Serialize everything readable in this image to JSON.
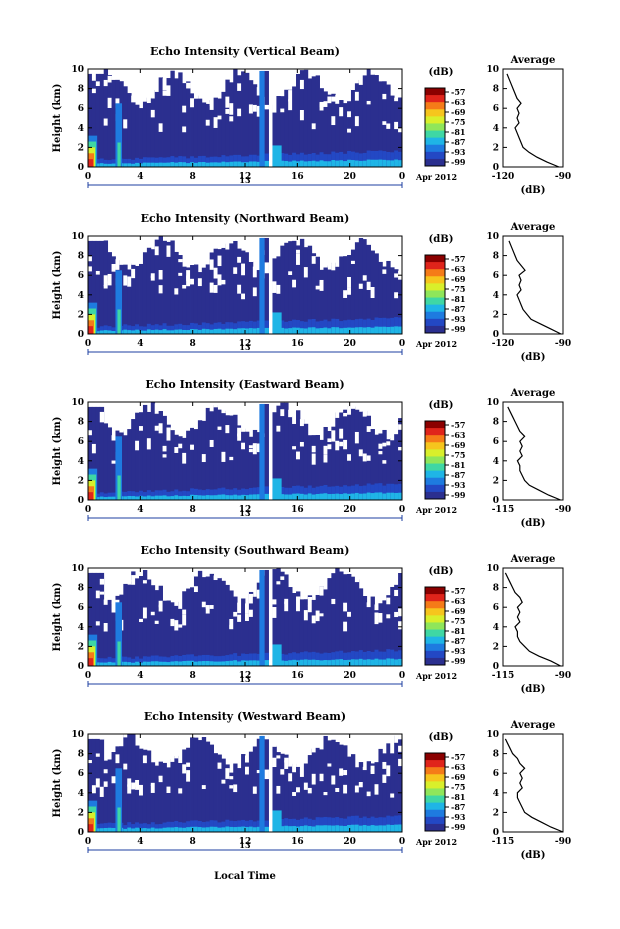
{
  "figure": {
    "xlabel": "Local Time",
    "date_label": "Apr 2012",
    "day_label": "13",
    "colorbar_unit": "(dB)",
    "colorbar_ticks": [
      "-57",
      "-63",
      "-69",
      "-75",
      "-81",
      "-87",
      "-93",
      "-99"
    ],
    "average_title": "Average",
    "average_xlabel": "(dB)"
  },
  "colors": {
    "background_echo": "#2b2f8f",
    "scale": [
      "#8b0000",
      "#e0241b",
      "#f57b18",
      "#f6c51d",
      "#d9ef2b",
      "#8fe65a",
      "#3fd7a4",
      "#1fb5e6",
      "#1e7be0",
      "#2348c4",
      "#2b2f8f"
    ]
  },
  "chart_data": [
    {
      "type": "heatmap",
      "title": "Echo Intensity (Vertical Beam)",
      "ylabel": "Height (km)",
      "xlim": [
        0,
        24
      ],
      "ylim": [
        0,
        10
      ],
      "xticks": [
        "0",
        "4",
        "8",
        "12",
        "16",
        "20",
        "0"
      ],
      "yticks": [
        "0",
        "2",
        "4",
        "6",
        "8",
        "10"
      ],
      "average": {
        "title": "Average",
        "xticks": [
          "-120",
          "-90"
        ],
        "xlim": [
          -120,
          -90
        ],
        "height": [
          0,
          0.5,
          1,
          1.5,
          2,
          2.5,
          3,
          3.5,
          4,
          4.5,
          5,
          5.5,
          6,
          6.5,
          7,
          7.5,
          8,
          8.5,
          9,
          9.5
        ],
        "db": [
          -92,
          -98,
          -103,
          -107,
          -110,
          -111,
          -112,
          -113,
          -114,
          -112,
          -113,
          -112,
          -113,
          -111,
          -113,
          -114,
          -115,
          -116,
          -117,
          -118
        ]
      }
    },
    {
      "type": "heatmap",
      "title": "Echo Intensity (Northward Beam)",
      "ylabel": "Height (km)",
      "xlim": [
        0,
        24
      ],
      "ylim": [
        0,
        10
      ],
      "xticks": [
        "0",
        "4",
        "8",
        "12",
        "16",
        "20",
        "0"
      ],
      "yticks": [
        "0",
        "2",
        "4",
        "6",
        "8",
        "10"
      ],
      "average": {
        "title": "Average",
        "xticks": [
          "-120",
          "-90"
        ],
        "xlim": [
          -120,
          -90
        ],
        "height": [
          0,
          0.5,
          1,
          1.5,
          2,
          2.5,
          3,
          3.5,
          4,
          4.5,
          5,
          5.5,
          6,
          6.5,
          7,
          7.5,
          8,
          8.5,
          9,
          9.5
        ],
        "db": [
          -91,
          -96,
          -101,
          -106,
          -108,
          -110,
          -111,
          -112,
          -113,
          -111,
          -112,
          -111,
          -112,
          -109,
          -111,
          -113,
          -114,
          -115,
          -116,
          -117
        ]
      }
    },
    {
      "type": "heatmap",
      "title": "Echo Intensity (Eastward Beam)",
      "ylabel": "Height (km)",
      "xlim": [
        0,
        24
      ],
      "ylim": [
        0,
        10
      ],
      "xticks": [
        "0",
        "4",
        "8",
        "12",
        "16",
        "20",
        "0"
      ],
      "yticks": [
        "0",
        "2",
        "4",
        "6",
        "8",
        "10"
      ],
      "average": {
        "title": "Average",
        "xticks": [
          "-115",
          "-90"
        ],
        "xlim": [
          -115,
          -90
        ],
        "height": [
          0,
          0.5,
          1,
          1.5,
          2,
          2.5,
          3,
          3.5,
          4,
          4.5,
          5,
          5.5,
          6,
          6.5,
          7,
          7.5,
          8,
          8.5,
          9,
          9.5
        ],
        "db": [
          -91,
          -96,
          -100,
          -104,
          -106,
          -107,
          -108,
          -108,
          -109,
          -107,
          -108,
          -107,
          -108,
          -106,
          -108,
          -109,
          -110,
          -111,
          -112,
          -113
        ]
      }
    },
    {
      "type": "heatmap",
      "title": "Echo Intensity (Southward Beam)",
      "ylabel": "Height (km)",
      "xlim": [
        0,
        24
      ],
      "ylim": [
        0,
        10
      ],
      "xticks": [
        "0",
        "4",
        "8",
        "12",
        "16",
        "20",
        "0"
      ],
      "yticks": [
        "0",
        "2",
        "4",
        "6",
        "8",
        "10"
      ],
      "average": {
        "title": "Average",
        "xticks": [
          "-115",
          "-90"
        ],
        "xlim": [
          -115,
          -90
        ],
        "height": [
          0,
          0.5,
          1,
          1.5,
          2,
          2.5,
          3,
          3.5,
          4,
          4.5,
          5,
          5.5,
          6,
          6.5,
          7,
          7.5,
          8,
          8.5,
          9,
          9.5
        ],
        "db": [
          -91,
          -95,
          -100,
          -104,
          -106,
          -108,
          -109,
          -109,
          -110,
          -108,
          -109,
          -108,
          -109,
          -107,
          -108,
          -110,
          -111,
          -112,
          -113,
          -114
        ]
      }
    },
    {
      "type": "heatmap",
      "title": "Echo Intensity (Westward Beam)",
      "ylabel": "Height (km)",
      "xlim": [
        0,
        24
      ],
      "ylim": [
        0,
        10
      ],
      "xticks": [
        "0",
        "4",
        "8",
        "12",
        "16",
        "20",
        "0"
      ],
      "yticks": [
        "0",
        "2",
        "4",
        "6",
        "8",
        "10"
      ],
      "average": {
        "title": "Average",
        "xticks": [
          "-115",
          "-90"
        ],
        "xlim": [
          -115,
          -90
        ],
        "height": [
          0,
          0.5,
          1,
          1.5,
          2,
          2.5,
          3,
          3.5,
          4,
          4.5,
          5,
          5.5,
          6,
          6.5,
          7,
          7.5,
          8,
          8.5,
          9,
          9.5
        ],
        "db": [
          -90,
          -95,
          -99,
          -103,
          -106,
          -107,
          -108,
          -109,
          -109,
          -107,
          -108,
          -107,
          -108,
          -106,
          -108,
          -109,
          -111,
          -112,
          -113,
          -114
        ]
      }
    }
  ]
}
